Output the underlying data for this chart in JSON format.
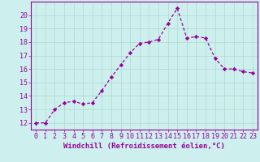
{
  "x": [
    0,
    1,
    2,
    3,
    4,
    5,
    6,
    7,
    8,
    9,
    10,
    11,
    12,
    13,
    14,
    15,
    16,
    17,
    18,
    19,
    20,
    21,
    22,
    23
  ],
  "y": [
    12,
    12,
    13,
    13.5,
    13.6,
    13.4,
    13.5,
    14.4,
    15.4,
    16.3,
    17.2,
    17.9,
    18.0,
    18.2,
    19.4,
    20.5,
    18.3,
    18.4,
    18.3,
    16.8,
    16.0,
    16.0,
    15.8,
    15.7
  ],
  "line_color": "#990099",
  "marker": "D",
  "marker_size": 2.2,
  "line_width": 0.9,
  "background_color": "#cdf0ee",
  "grid_color": "#aad8d0",
  "xlabel": "Windchill (Refroidissement éolien,°C)",
  "ylim": [
    11.5,
    21.0
  ],
  "xlim": [
    -0.5,
    23.5
  ],
  "yticks": [
    12,
    13,
    14,
    15,
    16,
    17,
    18,
    19,
    20
  ],
  "xticks": [
    0,
    1,
    2,
    3,
    4,
    5,
    6,
    7,
    8,
    9,
    10,
    11,
    12,
    13,
    14,
    15,
    16,
    17,
    18,
    19,
    20,
    21,
    22,
    23
  ],
  "tick_color": "#990099",
  "label_color": "#990099",
  "xlabel_fontsize": 6.5,
  "tick_fontsize": 6.0
}
